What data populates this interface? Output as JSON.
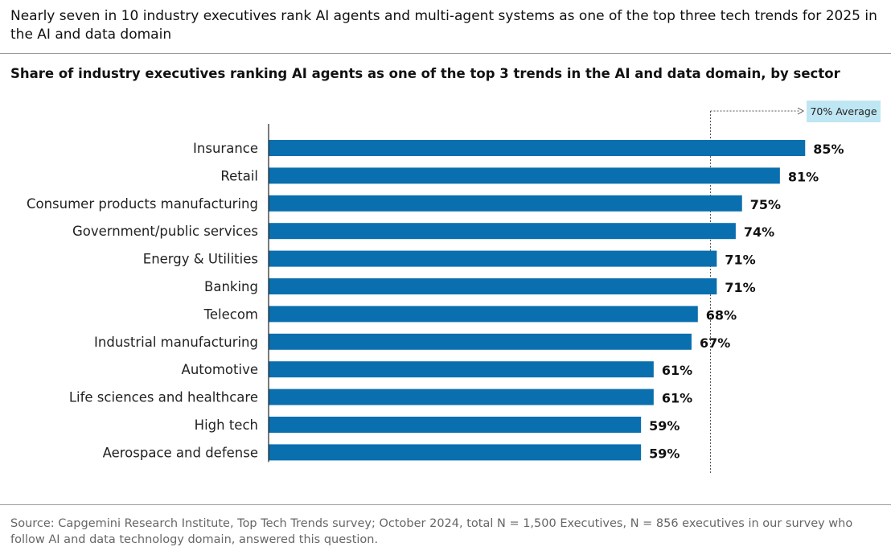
{
  "header": {
    "headline": "Nearly seven in 10 industry executives rank AI agents and multi-agent systems as one of the top three tech trends for 2025 in the AI and data domain"
  },
  "chart_data": {
    "type": "bar",
    "orientation": "horizontal",
    "title": "Share of industry executives ranking AI agents as one of the top 3 trends in the AI and data domain, by sector",
    "categories": [
      "Insurance",
      "Retail",
      "Consumer products manufacturing",
      "Government/public services",
      "Energy & Utilities",
      "Banking",
      "Telecom",
      "Industrial manufacturing",
      "Automotive",
      "Life sciences and healthcare",
      "High tech",
      "Aerospace and defense"
    ],
    "values": [
      85,
      81,
      75,
      74,
      71,
      71,
      68,
      67,
      61,
      61,
      59,
      59
    ],
    "value_labels": [
      "85%",
      "81%",
      "75%",
      "74%",
      "71%",
      "71%",
      "68%",
      "67%",
      "61%",
      "61%",
      "59%",
      "59%"
    ],
    "xlim": [
      0,
      85
    ],
    "reference_line": {
      "value": 70,
      "label": "70% Average"
    },
    "grid": false,
    "legend": "none",
    "bar_color": "#0a6fae",
    "avg_box_color": "#bfe6f3"
  },
  "footer": {
    "source": "Source: Capgemini Research Institute, Top Tech Trends survey; October 2024, total N = 1,500 Executives, N = 856 executives in our survey who follow AI and data technology domain, answered this question."
  }
}
